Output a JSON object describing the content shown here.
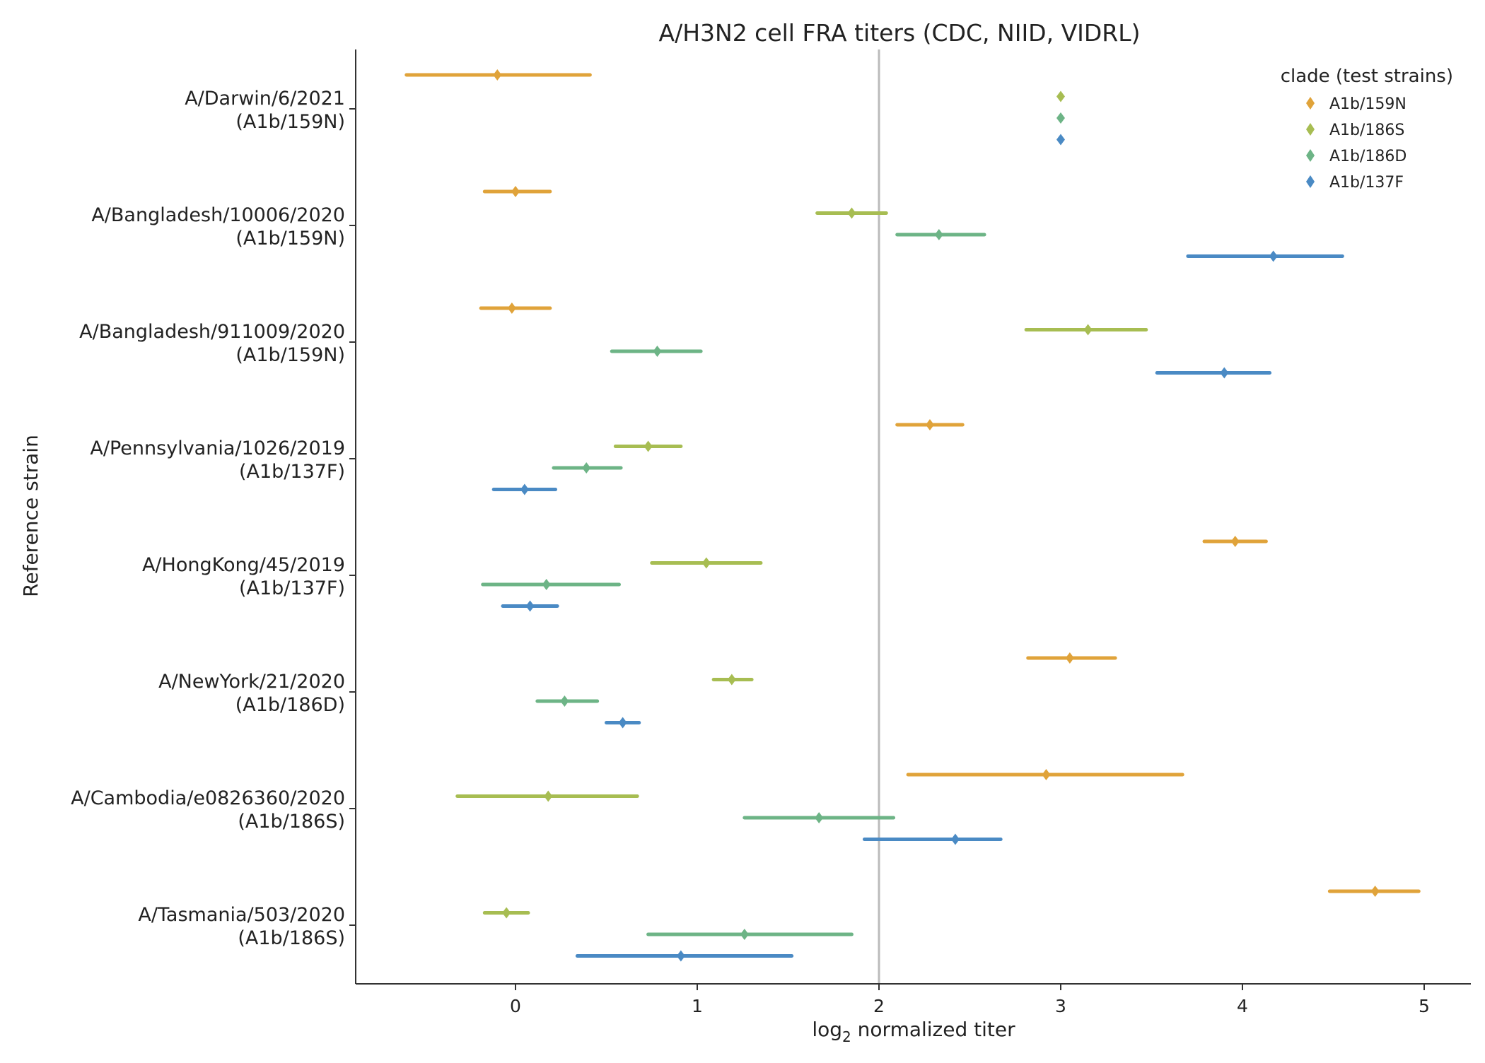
{
  "chart_data": {
    "type": "point-range",
    "title": "A/H3N2 cell FRA titers (CDC, NIID, VIDRL)",
    "xlabel_main": "log",
    "xlabel_sub": "2",
    "xlabel_rest": " normalized titer",
    "ylabel": "Reference strain",
    "xlim": [
      -0.88,
      5.25
    ],
    "xticks": [
      "0",
      "1",
      "2",
      "3",
      "4",
      "5"
    ],
    "xtick_values": [
      0,
      1,
      2,
      3,
      4,
      5
    ],
    "reference_line_x": 2,
    "grid": false,
    "legend": {
      "title": "clade (test strains)",
      "placement": "top-right",
      "entries": [
        {
          "name": "A1b/159N",
          "color": "#e0a33a"
        },
        {
          "name": "A1b/186S",
          "color": "#a7bd52"
        },
        {
          "name": "A1b/186D",
          "color": "#6db486"
        },
        {
          "name": "A1b/137F",
          "color": "#4a8ac4"
        }
      ]
    },
    "categories": [
      {
        "name": "A/Darwin/6/2021",
        "clade": "(A1b/159N)"
      },
      {
        "name": "A/Bangladesh/10006/2020",
        "clade": "(A1b/159N)"
      },
      {
        "name": "A/Bangladesh/911009/2020",
        "clade": "(A1b/159N)"
      },
      {
        "name": "A/Pennsylvania/1026/2019",
        "clade": "(A1b/137F)"
      },
      {
        "name": "A/HongKong/45/2019",
        "clade": "(A1b/137F)"
      },
      {
        "name": "A/NewYork/21/2020",
        "clade": "(A1b/186D)"
      },
      {
        "name": "A/Cambodia/e0826360/2020",
        "clade": "(A1b/186S)"
      },
      {
        "name": "A/Tasmania/503/2020",
        "clade": "(A1b/186S)"
      }
    ],
    "series": [
      {
        "name": "A1b/159N",
        "color": "#e0a33a",
        "points": [
          {
            "x": -0.1,
            "lo": -0.6,
            "hi": 0.41
          },
          {
            "x": 0.0,
            "lo": -0.17,
            "hi": 0.19
          },
          {
            "x": -0.02,
            "lo": -0.19,
            "hi": 0.19
          },
          {
            "x": 2.28,
            "lo": 2.1,
            "hi": 2.46
          },
          {
            "x": 3.96,
            "lo": 3.79,
            "hi": 4.13
          },
          {
            "x": 3.05,
            "lo": 2.82,
            "hi": 3.3
          },
          {
            "x": 2.92,
            "lo": 2.16,
            "hi": 3.67
          },
          {
            "x": 4.73,
            "lo": 4.48,
            "hi": 4.97
          }
        ]
      },
      {
        "name": "A1b/186S",
        "color": "#a7bd52",
        "points": [
          {
            "x": 3.0,
            "lo": 3.0,
            "hi": 3.0
          },
          {
            "x": 1.85,
            "lo": 1.66,
            "hi": 2.04
          },
          {
            "x": 3.15,
            "lo": 2.81,
            "hi": 3.47
          },
          {
            "x": 0.73,
            "lo": 0.55,
            "hi": 0.91
          },
          {
            "x": 1.05,
            "lo": 0.75,
            "hi": 1.35
          },
          {
            "x": 1.19,
            "lo": 1.09,
            "hi": 1.3
          },
          {
            "x": 0.18,
            "lo": -0.32,
            "hi": 0.67
          },
          {
            "x": -0.05,
            "lo": -0.17,
            "hi": 0.07
          }
        ]
      },
      {
        "name": "A1b/186D",
        "color": "#6db486",
        "points": [
          {
            "x": 3.0,
            "lo": 3.0,
            "hi": 3.0
          },
          {
            "x": 2.33,
            "lo": 2.1,
            "hi": 2.58
          },
          {
            "x": 0.78,
            "lo": 0.53,
            "hi": 1.02
          },
          {
            "x": 0.39,
            "lo": 0.21,
            "hi": 0.58
          },
          {
            "x": 0.17,
            "lo": -0.18,
            "hi": 0.57
          },
          {
            "x": 0.27,
            "lo": 0.12,
            "hi": 0.45
          },
          {
            "x": 1.67,
            "lo": 1.26,
            "hi": 2.08
          },
          {
            "x": 1.26,
            "lo": 0.73,
            "hi": 1.85
          }
        ]
      },
      {
        "name": "A1b/137F",
        "color": "#4a8ac4",
        "points": [
          {
            "x": 3.0,
            "lo": 3.0,
            "hi": 3.0
          },
          {
            "x": 4.17,
            "lo": 3.7,
            "hi": 4.55
          },
          {
            "x": 3.9,
            "lo": 3.53,
            "hi": 4.15
          },
          {
            "x": 0.05,
            "lo": -0.12,
            "hi": 0.22
          },
          {
            "x": 0.08,
            "lo": -0.07,
            "hi": 0.23
          },
          {
            "x": 0.59,
            "lo": 0.5,
            "hi": 0.68
          },
          {
            "x": 2.42,
            "lo": 1.92,
            "hi": 2.67
          },
          {
            "x": 0.91,
            "lo": 0.34,
            "hi": 1.52
          }
        ]
      }
    ]
  }
}
